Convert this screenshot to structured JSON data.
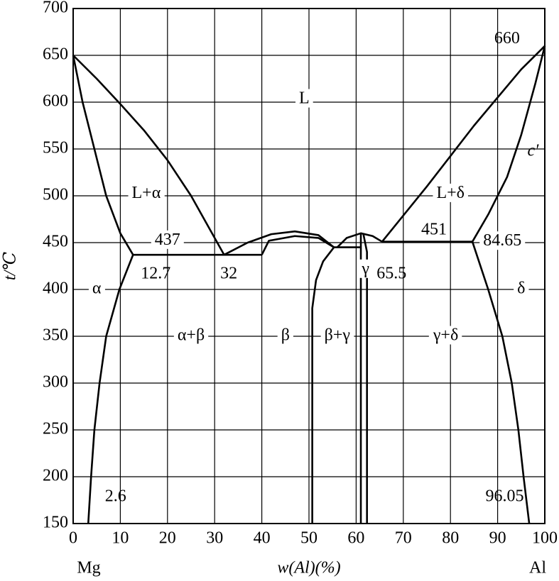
{
  "chart_data": {
    "type": "line",
    "xlabel": "w(Al)(%)",
    "ylabel": "t/℃",
    "left_end_label": "Mg",
    "right_end_label": "Al",
    "xlim": [
      0,
      100
    ],
    "ylim": [
      150,
      700
    ],
    "xticks": [
      0,
      10,
      20,
      30,
      40,
      50,
      60,
      70,
      80,
      90,
      100
    ],
    "yticks": [
      150,
      200,
      250,
      300,
      350,
      400,
      450,
      500,
      550,
      600,
      650,
      700
    ],
    "grid": true,
    "color": "#000000",
    "lines": [
      {
        "x": [
          0,
          5,
          10,
          15,
          20,
          25,
          30,
          32
        ],
        "y": [
          650,
          625,
          598,
          570,
          538,
          500,
          455,
          437
        ]
      },
      {
        "x": [
          0,
          2,
          4,
          7,
          10,
          12.7
        ],
        "y": [
          650,
          600,
          560,
          500,
          460,
          437
        ]
      },
      {
        "x": [
          12.7,
          40
        ],
        "y": [
          437,
          437
        ]
      },
      {
        "x": [
          12.7,
          9.8,
          7,
          5.6,
          4.5,
          3.8,
          3.2
        ],
        "y": [
          437,
          400,
          350,
          300,
          250,
          200,
          150
        ]
      },
      {
        "x": [
          32,
          37,
          42,
          47,
          52,
          55.3
        ],
        "y": [
          437,
          450,
          459,
          462,
          458,
          445
        ]
      },
      {
        "x": [
          40,
          41.5,
          47,
          52,
          55.3
        ],
        "y": [
          437,
          452,
          457,
          455,
          445
        ]
      },
      {
        "x": [
          55.3,
          61
        ],
        "y": [
          445,
          445
        ]
      },
      {
        "x": [
          50.7,
          50.7,
          51.5,
          53,
          55.3
        ],
        "y": [
          150,
          380,
          410,
          430,
          445
        ]
      },
      {
        "x": [
          56,
          58,
          61,
          63.5,
          65.5
        ],
        "y": [
          445,
          455,
          460,
          457,
          451
        ]
      },
      {
        "x": [
          61,
          61,
          61
        ],
        "y": [
          150,
          445,
          460
        ]
      },
      {
        "x": [
          62.3,
          62.3,
          61.5
        ],
        "y": [
          150,
          440,
          460
        ]
      },
      {
        "x": [
          65.5,
          84.65
        ],
        "y": [
          451,
          451
        ]
      },
      {
        "x": [
          65.5,
          75,
          85,
          95,
          100
        ],
        "y": [
          451,
          510,
          575,
          635,
          660
        ]
      },
      {
        "x": [
          100,
          98,
          95,
          92,
          88,
          84.65
        ],
        "y": [
          660,
          620,
          565,
          520,
          480,
          451
        ]
      },
      {
        "x": [
          84.65,
          88,
          91,
          93,
          94.4,
          95.5,
          96.7
        ],
        "y": [
          451,
          400,
          350,
          300,
          250,
          200,
          150
        ]
      }
    ],
    "annotations": [
      "660",
      "L",
      "c′",
      "L+α",
      "L+δ",
      "437",
      "451",
      "84.65",
      "12.7",
      "32",
      "65.5",
      "α",
      "δ",
      "γ",
      "α+β",
      "β",
      "β+γ",
      "γ+δ",
      "2.6",
      "96.05"
    ]
  }
}
